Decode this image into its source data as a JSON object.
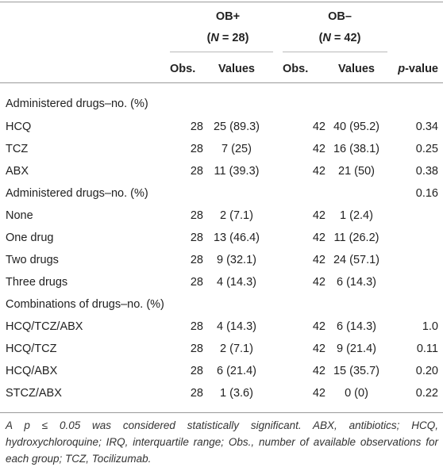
{
  "header": {
    "group1": {
      "name": "OB+",
      "n_label": "N",
      "n_value": " = 28"
    },
    "group2": {
      "name": "OB–",
      "n_label": "N",
      "n_value": " = 42"
    },
    "columns": {
      "obs1": "Obs.",
      "values1": "Values",
      "obs2": "Obs.",
      "values2": "Values",
      "p_prefix": "p",
      "p_suffix": "-value"
    }
  },
  "sections": [
    {
      "title": "Administered drugs–no. (%)",
      "p": "",
      "rows": [
        {
          "label": "HCQ",
          "obs1": "28",
          "val1": "25 (89.3)",
          "obs2": "42",
          "val2": "40 (95.2)",
          "p": "0.34"
        },
        {
          "label": "TCZ",
          "obs1": "28",
          "val1": "7 (25)",
          "obs2": "42",
          "val2": "16 (38.1)",
          "p": "0.25"
        },
        {
          "label": "ABX",
          "obs1": "28",
          "val1": "11 (39.3)",
          "obs2": "42",
          "val2": "21 (50)",
          "p": "0.38"
        }
      ]
    },
    {
      "title": "Administered drugs–no. (%)",
      "p": "0.16",
      "rows": [
        {
          "label": "None",
          "obs1": "28",
          "val1": "2 (7.1)",
          "obs2": "42",
          "val2": "1 (2.4)",
          "p": ""
        },
        {
          "label": "One drug",
          "obs1": "28",
          "val1": "13 (46.4)",
          "obs2": "42",
          "val2": "11 (26.2)",
          "p": ""
        },
        {
          "label": "Two drugs",
          "obs1": "28",
          "val1": "9 (32.1)",
          "obs2": "42",
          "val2": "24 (57.1)",
          "p": ""
        },
        {
          "label": "Three drugs",
          "obs1": "28",
          "val1": "4 (14.3)",
          "obs2": "42",
          "val2": "6 (14.3)",
          "p": ""
        }
      ]
    },
    {
      "title": "Combinations of drugs–no. (%)",
      "p": "",
      "rows": [
        {
          "label": "HCQ/TCZ/ABX",
          "obs1": "28",
          "val1": "4 (14.3)",
          "obs2": "42",
          "val2": "6 (14.3)",
          "p": "1.0"
        },
        {
          "label": "HCQ/TCZ",
          "obs1": "28",
          "val1": "2 (7.1)",
          "obs2": "42",
          "val2": "9 (21.4)",
          "p": "0.11"
        },
        {
          "label": "HCQ/ABX",
          "obs1": "28",
          "val1": "6 (21.4)",
          "obs2": "42",
          "val2": "15 (35.7)",
          "p": "0.20"
        },
        {
          "label": "STCZ/ABX",
          "obs1": "28",
          "val1": "1 (3.6)",
          "obs2": "42",
          "val2": "0 (0)",
          "p": "0.22"
        }
      ]
    }
  ],
  "footnote": "A p ≤ 0.05 was considered statistically significant. ABX, antibiotics; HCQ, hydroxychloroquine; IRQ, interquartile range; Obs., number of available observations for each group; TCZ, Tocilizumab."
}
